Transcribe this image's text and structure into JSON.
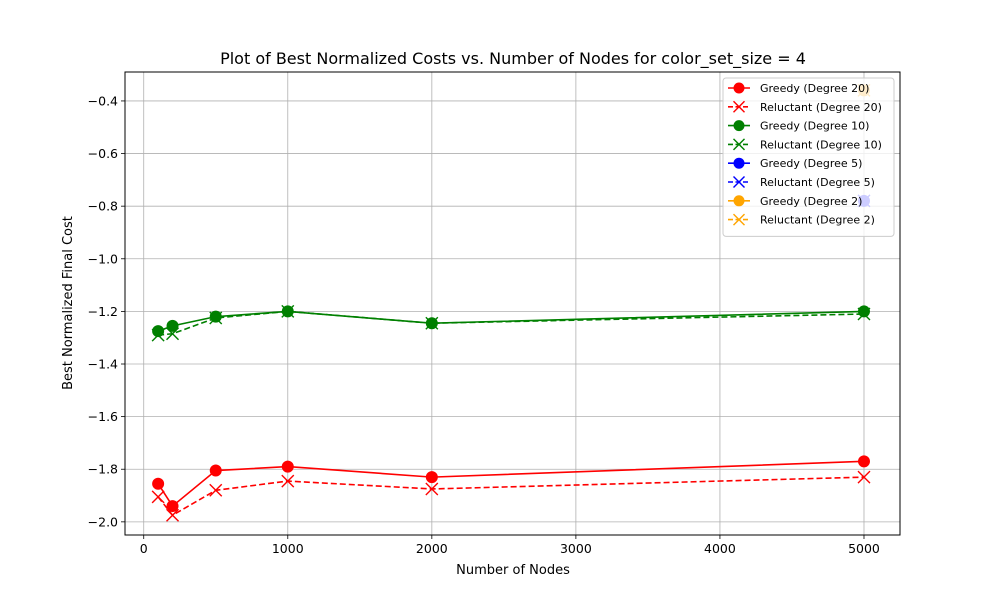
{
  "chart_data": {
    "type": "line",
    "title": "Plot of Best Normalized Costs vs. Number of Nodes for color_set_size = 4",
    "xlabel": "Number of Nodes",
    "ylabel": "Best Normalized Final Cost",
    "xlim": [
      -130,
      5250
    ],
    "ylim": [
      -2.05,
      -0.29
    ],
    "xticks": [
      0,
      1000,
      2000,
      3000,
      4000,
      5000
    ],
    "yticks": [
      -2.0,
      -1.8,
      -1.6,
      -1.4,
      -1.2,
      -1.0,
      -0.8,
      -0.6,
      -0.4
    ],
    "xtick_labels": [
      "0",
      "1000",
      "2000",
      "3000",
      "4000",
      "5000"
    ],
    "ytick_labels": [
      "−2.0",
      "−1.8",
      "−1.6",
      "−1.4",
      "−1.2",
      "−1.0",
      "−0.8",
      "−0.6",
      "−0.4"
    ],
    "grid": true,
    "legend_position": "top-right",
    "series": [
      {
        "name": "Greedy (Degree 20)",
        "color": "#ff0000",
        "linestyle": "solid",
        "marker": "circle",
        "x": [
          100,
          200,
          500,
          1000,
          2000,
          5000
        ],
        "y": [
          -1.855,
          -1.94,
          -1.805,
          -1.79,
          -1.83,
          -1.77
        ]
      },
      {
        "name": "Reluctant (Degree 20)",
        "color": "#ff0000",
        "linestyle": "dashed",
        "marker": "x",
        "x": [
          100,
          200,
          500,
          1000,
          2000,
          5000
        ],
        "y": [
          -1.905,
          -1.975,
          -1.88,
          -1.845,
          -1.875,
          -1.83
        ]
      },
      {
        "name": "Greedy (Degree 10)",
        "color": "#008000",
        "linestyle": "solid",
        "marker": "circle",
        "x": [
          100,
          200,
          500,
          1000,
          2000,
          5000
        ],
        "y": [
          -1.275,
          -1.255,
          -1.22,
          -1.2,
          -1.245,
          -1.2
        ]
      },
      {
        "name": "Reluctant (Degree 10)",
        "color": "#008000",
        "linestyle": "dashed",
        "marker": "x",
        "x": [
          100,
          200,
          500,
          1000,
          2000,
          5000
        ],
        "y": [
          -1.29,
          -1.285,
          -1.225,
          -1.2,
          -1.245,
          -1.21
        ]
      },
      {
        "name": "Greedy (Degree 5)",
        "color": "#0000ff",
        "linestyle": "solid",
        "marker": "circle",
        "x": [
          5000
        ],
        "y": [
          -0.78
        ]
      },
      {
        "name": "Reluctant (Degree 5)",
        "color": "#0000ff",
        "linestyle": "dashed",
        "marker": "x",
        "x": [
          5000
        ],
        "y": [
          -0.78
        ]
      },
      {
        "name": "Greedy (Degree 2)",
        "color": "#ffa500",
        "linestyle": "solid",
        "marker": "circle",
        "x": [
          5000
        ],
        "y": [
          -0.36
        ]
      },
      {
        "name": "Reluctant (Degree 2)",
        "color": "#ffa500",
        "linestyle": "dashed",
        "marker": "x",
        "x": [
          5000
        ],
        "y": [
          -0.36
        ]
      }
    ]
  }
}
